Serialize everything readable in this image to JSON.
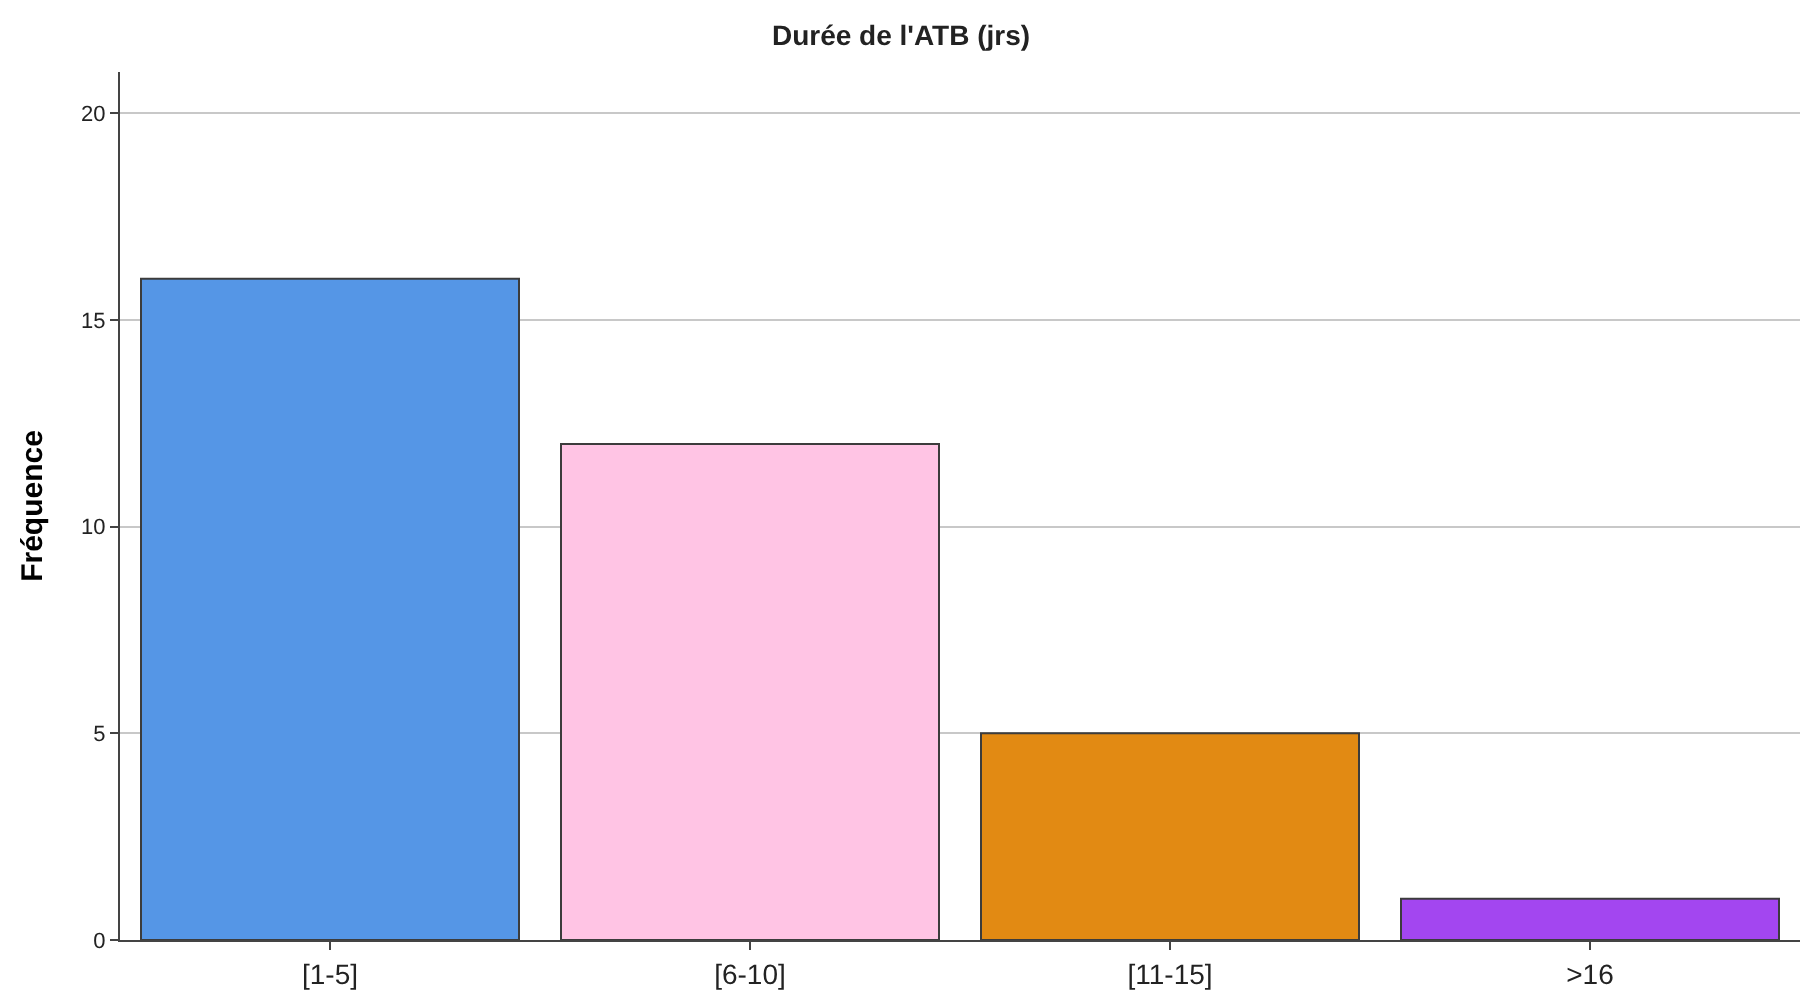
{
  "chart_data": {
    "type": "bar",
    "title": "Durée de l'ATB (jrs)",
    "ylabel": "Fréquence",
    "categories": [
      "[1-5]",
      "[6-10]",
      "[11-15]",
      ">16"
    ],
    "values": [
      16,
      12,
      5,
      1
    ],
    "colors": [
      "#5596e6",
      "#ffc4e4",
      "#e28a13",
      "#a346f0"
    ],
    "ylim": [
      0,
      21
    ],
    "yticks": [
      0,
      5,
      10,
      15,
      20
    ],
    "grid": "y",
    "legend": false
  }
}
